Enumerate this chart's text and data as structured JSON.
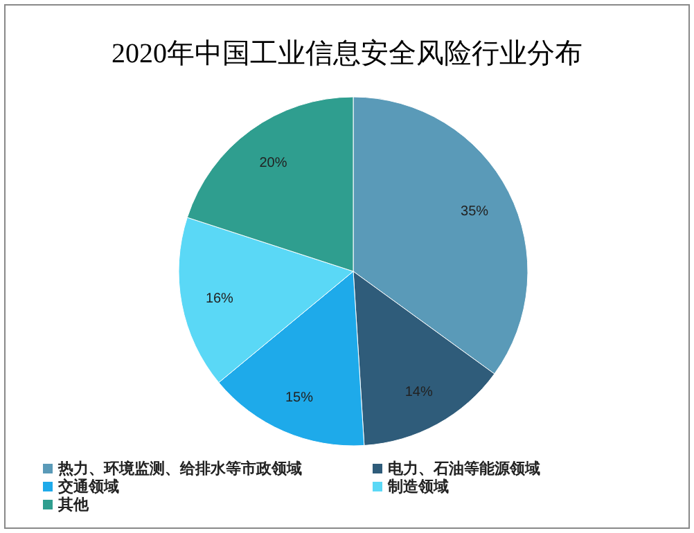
{
  "chart_data": {
    "type": "pie",
    "title": "2020年中国工业信息安全风险行业分布",
    "categories": [
      "热力、环境监测、给排水等市政领域",
      "电力、石油等能源领域",
      "交通领域",
      "制造领域",
      "其他"
    ],
    "values": [
      35,
      14,
      15,
      16,
      20
    ],
    "colors": [
      "#5a9ab8",
      "#2f5c7a",
      "#1eaaea",
      "#5ad8f6",
      "#2f9e8f"
    ],
    "value_labels": [
      "35%",
      "14%",
      "15%",
      "16%",
      "20%"
    ],
    "legend": "bottom"
  }
}
